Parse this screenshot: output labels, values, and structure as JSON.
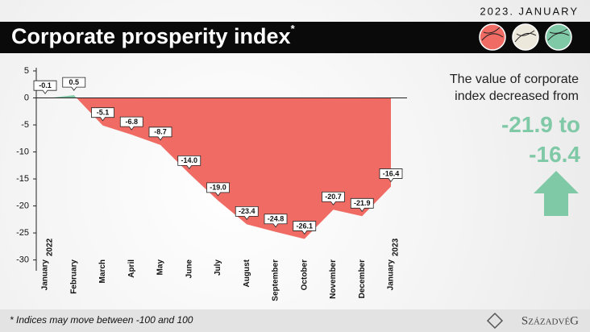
{
  "chart_data": {
    "type": "area",
    "date": "2023. JANUARY",
    "title": "Corporate prosperity index",
    "title_note": "*",
    "categories": [
      "January",
      "February",
      "March",
      "April",
      "May",
      "June",
      "July",
      "August",
      "September",
      "October",
      "November",
      "December",
      "January"
    ],
    "category_years": [
      "2022",
      null,
      null,
      null,
      null,
      null,
      null,
      null,
      null,
      null,
      null,
      null,
      "2023"
    ],
    "values": [
      -0.1,
      0.5,
      -5.1,
      -6.8,
      -8.7,
      -14.0,
      -19.0,
      -23.4,
      -24.8,
      -26.1,
      -20.7,
      -21.9,
      -16.4
    ],
    "value_labels": [
      "-0.1",
      "0.5",
      "-5.1",
      "-6.8",
      "-8.7",
      "-14.0",
      "-19.0",
      "-23.4",
      "-24.8",
      "-26.1",
      "-20.7",
      "-21.9",
      "-16.4"
    ],
    "positive_color": "#7fc9a7",
    "negative_color": "#ef6b64",
    "ylim": [
      -32,
      5
    ],
    "yticks": [
      5,
      0,
      -5,
      -10,
      -15,
      -20,
      -25,
      -30
    ],
    "grid": false,
    "annotation": "The value of corporate index decreased from",
    "highlight": "-21.9 to -16.4",
    "footnote": "* Indices may move between -100 and 100",
    "logo": "SzázadvéG"
  }
}
